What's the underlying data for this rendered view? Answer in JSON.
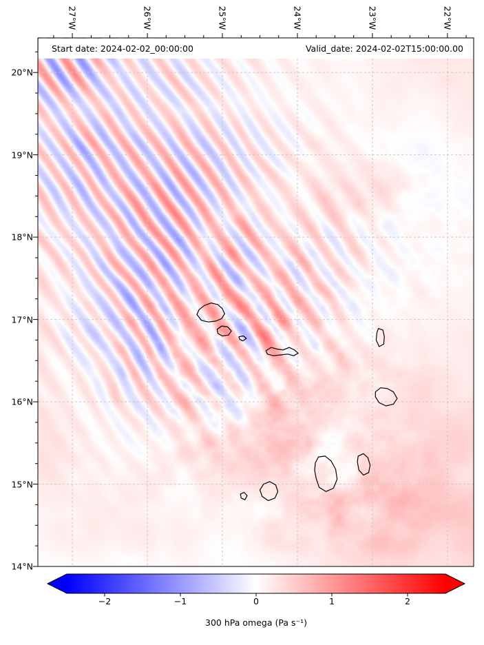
{
  "chart_data": {
    "type": "heatmap",
    "variable": "300 hPa omega",
    "units": "Pa s⁻¹",
    "region": "Cape Verde archipelago, eastern tropical North Atlantic",
    "annotations": {
      "start_date": "Start date: 2024-02-02_00:00:00",
      "valid_date": "Valid_date: 2024-02-02T15:00:00.00"
    },
    "x_axis": {
      "label": "longitude",
      "west_edge_degW": 27.46,
      "east_edge_degW": 21.65,
      "minor_tick_interval_deg": 0.25,
      "ticks": [
        {
          "value": 27,
          "label": "27°W"
        },
        {
          "value": 26,
          "label": "26°W"
        },
        {
          "value": 25,
          "label": "25°W"
        },
        {
          "value": 24,
          "label": "24°W"
        },
        {
          "value": 23,
          "label": "23°W"
        },
        {
          "value": 22,
          "label": "22°W"
        }
      ]
    },
    "y_axis": {
      "label": "latitude",
      "north_edge_degN": 20.42,
      "south_edge_degN": 14.0,
      "minor_tick_interval_deg": 0.25,
      "ticks": [
        {
          "value": 20,
          "label": "20°N"
        },
        {
          "value": 19,
          "label": "19°N"
        },
        {
          "value": 18,
          "label": "18°N"
        },
        {
          "value": 17,
          "label": "17°N"
        },
        {
          "value": 16,
          "label": "16°N"
        },
        {
          "value": 15,
          "label": "15°N"
        },
        {
          "value": 14,
          "label": "14°N"
        }
      ]
    },
    "colorbar": {
      "label": "300 hPa omega (Pa s⁻¹)",
      "colormap": "bwr",
      "vmin": -2.5,
      "vmax": 2.5,
      "extend": "both",
      "tick_values": [
        -2,
        -1,
        0,
        1,
        2
      ],
      "tick_labels": [
        "−2",
        "−1",
        "0",
        "1",
        "2"
      ],
      "colors": {
        "negative": "#0000ff",
        "zero": "#ffffff",
        "positive": "#ff0000"
      }
    },
    "grid": {
      "visible": true,
      "style": "dashed",
      "color": "#c9c9c9"
    },
    "colors": {
      "coastline": "#000000",
      "frame": "#000000",
      "background": "#ffffff"
    },
    "field_summary": [
      "Alternating NW–SE oriented streaks of ascent (blue) and descent (red) crossing the northwest quadrant of the domain",
      "Fine gravity-wave speckle of roughly ±1–2 Pa s⁻¹ around and downwind of the islands (15–17.5°N, 22.5–25.5°W)",
      "Weak pale-red (subsidence) background over the southern half and eastern part of the domain"
    ],
    "islands": [
      {
        "id": "santo-antao",
        "name": "Santo Antão",
        "polygon_degW_degN": [
          [
            25.34,
            17.06
          ],
          [
            25.31,
            17.12
          ],
          [
            25.24,
            17.17
          ],
          [
            25.15,
            17.2
          ],
          [
            25.06,
            17.18
          ],
          [
            25.0,
            17.13
          ],
          [
            24.97,
            17.07
          ],
          [
            25.01,
            17.01
          ],
          [
            25.09,
            16.98
          ],
          [
            25.19,
            16.97
          ],
          [
            25.28,
            16.99
          ]
        ]
      },
      {
        "id": "sao-vicente",
        "name": "São Vicente",
        "polygon_degW_degN": [
          [
            25.07,
            16.88
          ],
          [
            25.01,
            16.92
          ],
          [
            24.93,
            16.91
          ],
          [
            24.88,
            16.86
          ],
          [
            24.92,
            16.81
          ],
          [
            25.0,
            16.8
          ],
          [
            25.06,
            16.83
          ]
        ]
      },
      {
        "id": "santa-luzia",
        "name": "Santa Luzia",
        "polygon_degW_degN": [
          [
            24.78,
            16.79
          ],
          [
            24.72,
            16.8
          ],
          [
            24.68,
            16.77
          ],
          [
            24.73,
            16.74
          ],
          [
            24.77,
            16.76
          ]
        ]
      },
      {
        "id": "sao-nicolau",
        "name": "São Nicolau",
        "polygon_degW_degN": [
          [
            24.42,
            16.62
          ],
          [
            24.35,
            16.66
          ],
          [
            24.27,
            16.64
          ],
          [
            24.19,
            16.63
          ],
          [
            24.11,
            16.66
          ],
          [
            24.04,
            16.63
          ],
          [
            23.99,
            16.59
          ],
          [
            24.05,
            16.56
          ],
          [
            24.13,
            16.58
          ],
          [
            24.22,
            16.57
          ],
          [
            24.32,
            16.56
          ],
          [
            24.4,
            16.58
          ]
        ]
      },
      {
        "id": "sal",
        "name": "Sal",
        "polygon_degW_degN": [
          [
            22.92,
            16.89
          ],
          [
            22.86,
            16.87
          ],
          [
            22.84,
            16.79
          ],
          [
            22.85,
            16.7
          ],
          [
            22.91,
            16.67
          ],
          [
            22.95,
            16.75
          ],
          [
            22.94,
            16.84
          ]
        ]
      },
      {
        "id": "boa-vista",
        "name": "Boa Vista",
        "polygon_degW_degN": [
          [
            22.96,
            16.12
          ],
          [
            22.89,
            16.17
          ],
          [
            22.8,
            16.16
          ],
          [
            22.72,
            16.12
          ],
          [
            22.67,
            16.04
          ],
          [
            22.72,
            15.97
          ],
          [
            22.82,
            15.95
          ],
          [
            22.91,
            15.99
          ],
          [
            22.96,
            16.06
          ]
        ]
      },
      {
        "id": "maio",
        "name": "Maio",
        "polygon_degW_degN": [
          [
            23.19,
            15.34
          ],
          [
            23.12,
            15.37
          ],
          [
            23.06,
            15.32
          ],
          [
            23.03,
            15.23
          ],
          [
            23.05,
            15.14
          ],
          [
            23.12,
            15.11
          ],
          [
            23.18,
            15.17
          ],
          [
            23.2,
            15.27
          ]
        ]
      },
      {
        "id": "santiago",
        "name": "Santiago",
        "polygon_degW_degN": [
          [
            23.76,
            15.26
          ],
          [
            23.72,
            15.33
          ],
          [
            23.63,
            15.34
          ],
          [
            23.55,
            15.28
          ],
          [
            23.49,
            15.18
          ],
          [
            23.47,
            15.06
          ],
          [
            23.52,
            14.95
          ],
          [
            23.62,
            14.91
          ],
          [
            23.71,
            14.96
          ],
          [
            23.75,
            15.07
          ],
          [
            23.77,
            15.17
          ]
        ]
      },
      {
        "id": "fogo",
        "name": "Fogo",
        "polygon_degW_degN": [
          [
            24.5,
            14.93
          ],
          [
            24.45,
            15.0
          ],
          [
            24.37,
            15.03
          ],
          [
            24.29,
            14.99
          ],
          [
            24.26,
            14.91
          ],
          [
            24.3,
            14.83
          ],
          [
            24.39,
            14.8
          ],
          [
            24.47,
            14.85
          ]
        ]
      },
      {
        "id": "brava",
        "name": "Brava",
        "polygon_degW_degN": [
          [
            24.76,
            14.88
          ],
          [
            24.71,
            14.9
          ],
          [
            24.67,
            14.86
          ],
          [
            24.7,
            14.81
          ],
          [
            24.75,
            14.83
          ]
        ]
      }
    ]
  }
}
